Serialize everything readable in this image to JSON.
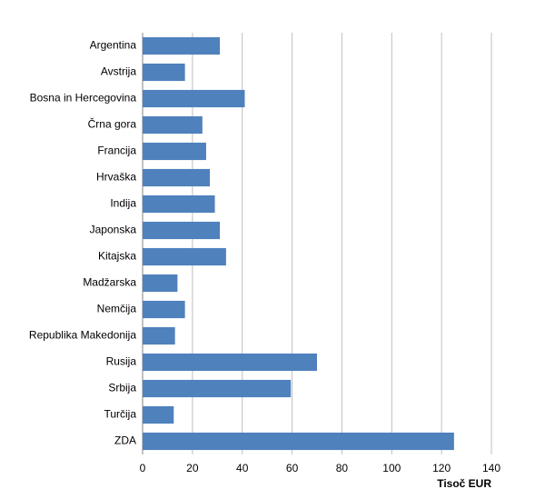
{
  "chart_data": {
    "type": "hbar",
    "x_label": "Tisoč EUR",
    "categories": [
      "Argentina",
      "Avstrija",
      "Bosna in Hercegovina",
      "Črna gora",
      "Francija",
      "Hrvaška",
      "Indija",
      "Japonska",
      "Kitajska",
      "Madžarska",
      "Nemčija",
      "Republika Makedonija",
      "Rusija",
      "Srbija",
      "Turčija",
      "ZDA"
    ],
    "values": [
      31,
      17,
      41,
      24,
      25.5,
      27,
      29,
      31,
      33.5,
      14,
      17,
      13,
      70,
      59.5,
      12.5,
      125
    ],
    "color": "#4f81bd",
    "xlim": [
      0,
      140
    ],
    "xticks": [
      0,
      20,
      40,
      60,
      80,
      100,
      120,
      140
    ],
    "grid": true
  }
}
